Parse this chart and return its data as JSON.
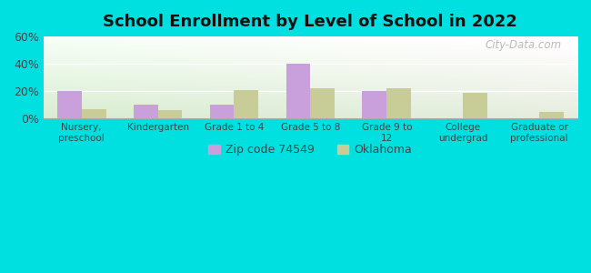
{
  "title": "School Enrollment by Level of School in 2022",
  "categories": [
    "Nursery,\npreschool",
    "Kindergarten",
    "Grade 1 to 4",
    "Grade 5 to 8",
    "Grade 9 to\n12",
    "College\nundergrad",
    "Graduate or\nprofessional"
  ],
  "zip_values": [
    20,
    10,
    10,
    40,
    20,
    0,
    0
  ],
  "ok_values": [
    7,
    6,
    21,
    22,
    22,
    19,
    5
  ],
  "zip_color": "#c9a0dc",
  "ok_color": "#c8cc96",
  "background_outer": "#00e0e0",
  "title_color": "#111111",
  "axis_label_color": "#444444",
  "ylim": [
    0,
    60
  ],
  "yticks": [
    0,
    20,
    40,
    60
  ],
  "ytick_labels": [
    "0%",
    "20%",
    "40%",
    "60%"
  ],
  "legend_label_zip": "Zip code 74549",
  "legend_label_ok": "Oklahoma",
  "bar_width": 0.32,
  "watermark": "City-Data.com"
}
